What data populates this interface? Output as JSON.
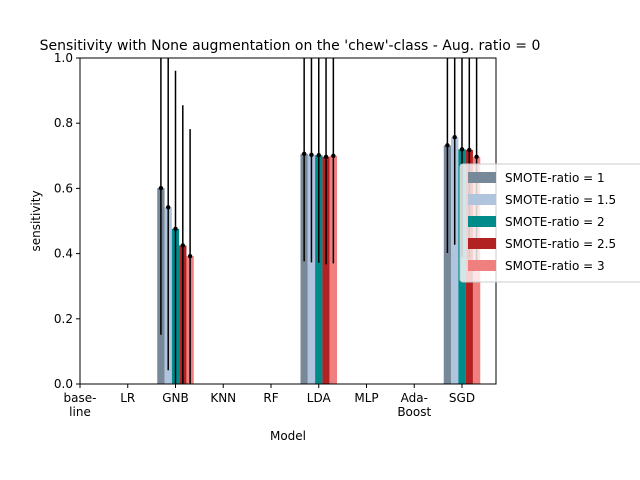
{
  "chart_data": {
    "type": "bar",
    "title": "Sensitivity with None augmentation on the 'chew'-class - Aug. ratio = 0",
    "xlabel": "Model",
    "ylabel": "sensitivity",
    "ylim": [
      0,
      1.0
    ],
    "yticks": [
      "0.0",
      "0.2",
      "0.4",
      "0.6",
      "0.8",
      "1.0"
    ],
    "categories": [
      [
        "base-",
        "line"
      ],
      [
        "LR"
      ],
      [
        "GNB"
      ],
      [
        "KNN"
      ],
      [
        "RF"
      ],
      [
        "LDA"
      ],
      [
        "MLP"
      ],
      [
        "Ada-",
        "Boost"
      ],
      [
        "SGD"
      ]
    ],
    "grid": false,
    "legend_position": "center-right",
    "series": [
      {
        "name": "SMOTE-ratio = 1",
        "color": "#778899",
        "values": [
          0,
          0,
          0.601,
          0,
          0,
          0.706,
          0,
          0,
          0.732
        ],
        "err": [
          0,
          0,
          0.45,
          0,
          0,
          0.33,
          0,
          0,
          0.33
        ]
      },
      {
        "name": "SMOTE-ratio = 1.5",
        "color": "#b0c4de",
        "values": [
          0,
          0,
          0.542,
          0,
          0,
          0.703,
          0,
          0,
          0.757
        ],
        "err": [
          0,
          0,
          0.5,
          0,
          0,
          0.33,
          0,
          0,
          0.33
        ]
      },
      {
        "name": "SMOTE-ratio = 2",
        "color": "#008b8b",
        "values": [
          0,
          0,
          0.476,
          0,
          0,
          0.702,
          0,
          0,
          0.72
        ],
        "err": [
          0,
          0,
          0.485,
          0,
          0,
          0.33,
          0,
          0,
          0.33
        ]
      },
      {
        "name": "SMOTE-ratio = 2.5",
        "color": "#b22222",
        "values": [
          0,
          0,
          0.425,
          0,
          0,
          0.697,
          0,
          0,
          0.718
        ],
        "err": [
          0,
          0,
          0.43,
          0,
          0,
          0.33,
          0,
          0,
          0.33
        ]
      },
      {
        "name": "SMOTE-ratio = 3",
        "color": "#f08080",
        "values": [
          0,
          0,
          0.392,
          0,
          0,
          0.7,
          0,
          0,
          0.697
        ],
        "err": [
          0,
          0,
          0.39,
          0,
          0,
          0.33,
          0,
          0,
          0.33
        ]
      }
    ]
  }
}
